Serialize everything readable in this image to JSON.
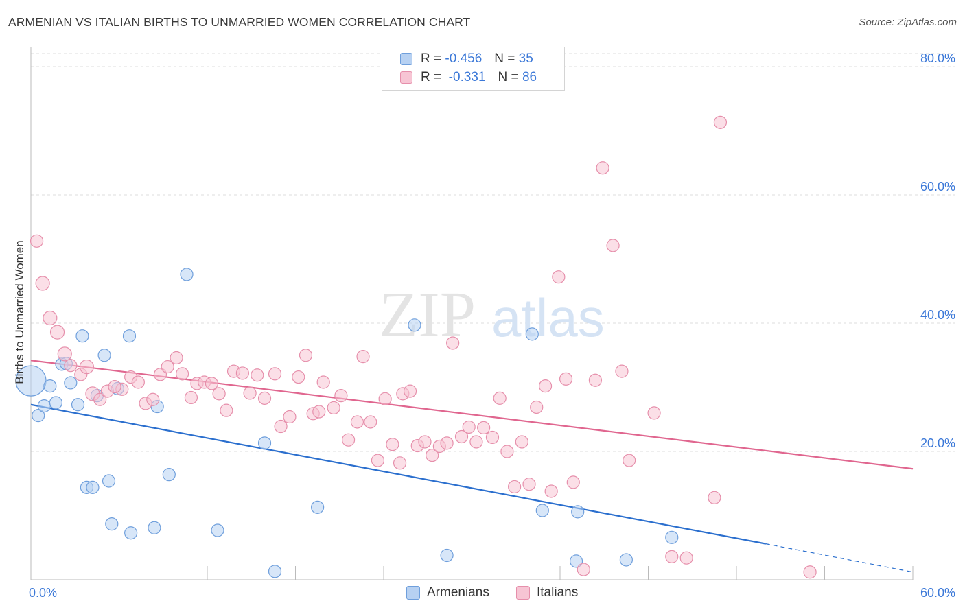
{
  "header": {
    "title": "ARMENIAN VS ITALIAN BIRTHS TO UNMARRIED WOMEN CORRELATION CHART",
    "source": "Source: ZipAtlas.com"
  },
  "legend": {
    "rows": [
      {
        "r_label": "R =",
        "r_value": "-0.456",
        "n_label": "N =",
        "n_value": "35"
      },
      {
        "r_label": "R =",
        "r_value": "-0.331",
        "n_label": "N =",
        "n_value": "86"
      }
    ],
    "bottom": [
      "Armenians",
      "Italians"
    ]
  },
  "watermark": {
    "zip": "ZIP",
    "atlas": "atlas"
  },
  "colors": {
    "armenian_fill": "#b7d1f2",
    "armenian_stroke": "#6f9fdc",
    "armenian_line": "#2b6fce",
    "italian_fill": "#f7c5d4",
    "italian_stroke": "#e68fab",
    "italian_line": "#e0668f",
    "tick_label": "#3b78d8",
    "grid": "#dcdcdc"
  },
  "chart_data": {
    "type": "scatter",
    "title": "ARMENIAN VS ITALIAN BIRTHS TO UNMARRIED WOMEN CORRELATION CHART",
    "xlabel": "",
    "ylabel": "Births to Unmarried Women",
    "xlim": [
      0,
      60
    ],
    "ylim": [
      0,
      82
    ],
    "x_tick_labels": [
      "0.0%",
      "60.0%"
    ],
    "y_ticks": [
      20,
      40,
      60,
      80
    ],
    "y_tick_labels": [
      "20.0%",
      "40.0%",
      "60.0%",
      "80.0%"
    ],
    "grid": true,
    "legend_position": "top-center",
    "series": [
      {
        "name": "Armenians",
        "r": -0.456,
        "n": 35,
        "trend": {
          "x1": 0,
          "y1": 27.3,
          "x2": 50,
          "y2": 5.6,
          "dashed_to_x": 60,
          "dashed_to_y": 1.2
        },
        "points": [
          [
            0.0,
            31.0,
            22
          ],
          [
            0.5,
            25.6,
            9
          ],
          [
            0.9,
            27.1,
            9
          ],
          [
            1.3,
            30.2,
            9
          ],
          [
            1.7,
            27.6,
            9
          ],
          [
            2.1,
            33.6,
            9
          ],
          [
            2.4,
            33.7,
            9
          ],
          [
            2.7,
            30.7,
            9
          ],
          [
            3.2,
            27.3,
            9
          ],
          [
            3.5,
            38.0,
            9
          ],
          [
            3.8,
            14.4,
            9
          ],
          [
            4.2,
            14.4,
            9
          ],
          [
            4.5,
            28.7,
            9
          ],
          [
            5.0,
            35.0,
            9
          ],
          [
            5.3,
            15.4,
            9
          ],
          [
            5.5,
            8.7,
            9
          ],
          [
            5.9,
            29.8,
            9
          ],
          [
            6.8,
            7.3,
            9
          ],
          [
            6.7,
            38.0,
            9
          ],
          [
            8.4,
            8.1,
            9
          ],
          [
            8.6,
            27.0,
            9
          ],
          [
            9.4,
            16.4,
            9
          ],
          [
            10.6,
            47.6,
            9
          ],
          [
            12.7,
            7.7,
            9
          ],
          [
            15.9,
            21.3,
            9
          ],
          [
            16.6,
            1.3,
            9
          ],
          [
            19.5,
            11.3,
            9
          ],
          [
            26.1,
            39.7,
            9
          ],
          [
            28.3,
            3.8,
            9
          ],
          [
            34.1,
            38.3,
            9
          ],
          [
            34.8,
            10.8,
            9
          ],
          [
            37.2,
            10.6,
            9
          ],
          [
            37.1,
            2.9,
            9
          ],
          [
            40.5,
            3.1,
            9
          ],
          [
            43.6,
            6.6,
            9
          ]
        ]
      },
      {
        "name": "Italians",
        "r": -0.331,
        "n": 86,
        "trend": {
          "x1": 0,
          "y1": 34.2,
          "x2": 60,
          "y2": 17.3
        },
        "points": [
          [
            0.4,
            52.8,
            9
          ],
          [
            0.8,
            46.2,
            10
          ],
          [
            1.3,
            40.8,
            10
          ],
          [
            1.8,
            38.6,
            10
          ],
          [
            2.3,
            35.2,
            10
          ],
          [
            2.7,
            33.4,
            9
          ],
          [
            3.4,
            32.0,
            9
          ],
          [
            3.8,
            33.2,
            10
          ],
          [
            4.2,
            29.0,
            10
          ],
          [
            4.7,
            28.1,
            9
          ],
          [
            5.2,
            29.4,
            9
          ],
          [
            6.2,
            29.7,
            9
          ],
          [
            5.7,
            30.1,
            9
          ],
          [
            6.8,
            31.6,
            9
          ],
          [
            7.3,
            30.8,
            9
          ],
          [
            7.8,
            27.5,
            9
          ],
          [
            8.3,
            28.1,
            9
          ],
          [
            8.8,
            32.0,
            9
          ],
          [
            9.3,
            33.2,
            9
          ],
          [
            9.9,
            34.6,
            9
          ],
          [
            10.3,
            32.1,
            9
          ],
          [
            10.9,
            28.4,
            9
          ],
          [
            11.3,
            30.6,
            9
          ],
          [
            11.8,
            30.8,
            9
          ],
          [
            12.3,
            30.6,
            9
          ],
          [
            12.8,
            29.0,
            9
          ],
          [
            13.3,
            26.4,
            9
          ],
          [
            13.8,
            32.5,
            9
          ],
          [
            14.4,
            32.2,
            9
          ],
          [
            14.9,
            29.1,
            9
          ],
          [
            15.4,
            31.9,
            9
          ],
          [
            15.9,
            28.3,
            9
          ],
          [
            16.6,
            32.1,
            9
          ],
          [
            17.0,
            23.9,
            9
          ],
          [
            17.6,
            25.4,
            9
          ],
          [
            18.2,
            31.6,
            9
          ],
          [
            18.7,
            35.0,
            9
          ],
          [
            19.2,
            25.9,
            9
          ],
          [
            19.6,
            26.2,
            9
          ],
          [
            19.9,
            30.8,
            9
          ],
          [
            20.6,
            26.8,
            9
          ],
          [
            21.1,
            28.7,
            9
          ],
          [
            21.6,
            21.8,
            9
          ],
          [
            22.2,
            24.6,
            9
          ],
          [
            22.6,
            34.8,
            9
          ],
          [
            23.1,
            24.6,
            9
          ],
          [
            23.6,
            18.6,
            9
          ],
          [
            24.1,
            28.2,
            9
          ],
          [
            24.6,
            21.1,
            9
          ],
          [
            25.1,
            18.2,
            9
          ],
          [
            25.3,
            29.0,
            9
          ],
          [
            25.8,
            29.4,
            9
          ],
          [
            26.3,
            20.9,
            9
          ],
          [
            26.8,
            21.5,
            9
          ],
          [
            27.3,
            19.4,
            9
          ],
          [
            27.8,
            20.8,
            9
          ],
          [
            28.3,
            21.3,
            9
          ],
          [
            28.7,
            36.9,
            9
          ],
          [
            29.3,
            22.3,
            9
          ],
          [
            29.8,
            23.8,
            9
          ],
          [
            30.3,
            21.5,
            9
          ],
          [
            30.8,
            23.7,
            9
          ],
          [
            31.4,
            22.2,
            9
          ],
          [
            31.9,
            28.3,
            9
          ],
          [
            32.4,
            20.0,
            9
          ],
          [
            32.9,
            14.5,
            9
          ],
          [
            33.4,
            21.5,
            9
          ],
          [
            33.9,
            14.9,
            9
          ],
          [
            34.4,
            26.9,
            9
          ],
          [
            35.0,
            30.2,
            9
          ],
          [
            35.4,
            13.8,
            9
          ],
          [
            35.9,
            47.2,
            9
          ],
          [
            36.4,
            31.3,
            9
          ],
          [
            36.9,
            15.2,
            9
          ],
          [
            37.6,
            1.6,
            9
          ],
          [
            38.4,
            31.1,
            9
          ],
          [
            38.9,
            64.2,
            9
          ],
          [
            39.6,
            52.1,
            9
          ],
          [
            40.2,
            32.5,
            9
          ],
          [
            40.7,
            18.6,
            9
          ],
          [
            42.4,
            26.0,
            9
          ],
          [
            43.6,
            3.6,
            9
          ],
          [
            44.6,
            3.4,
            9
          ],
          [
            46.5,
            12.8,
            9
          ],
          [
            46.9,
            71.3,
            9
          ],
          [
            53.0,
            1.2,
            9
          ]
        ]
      }
    ]
  }
}
